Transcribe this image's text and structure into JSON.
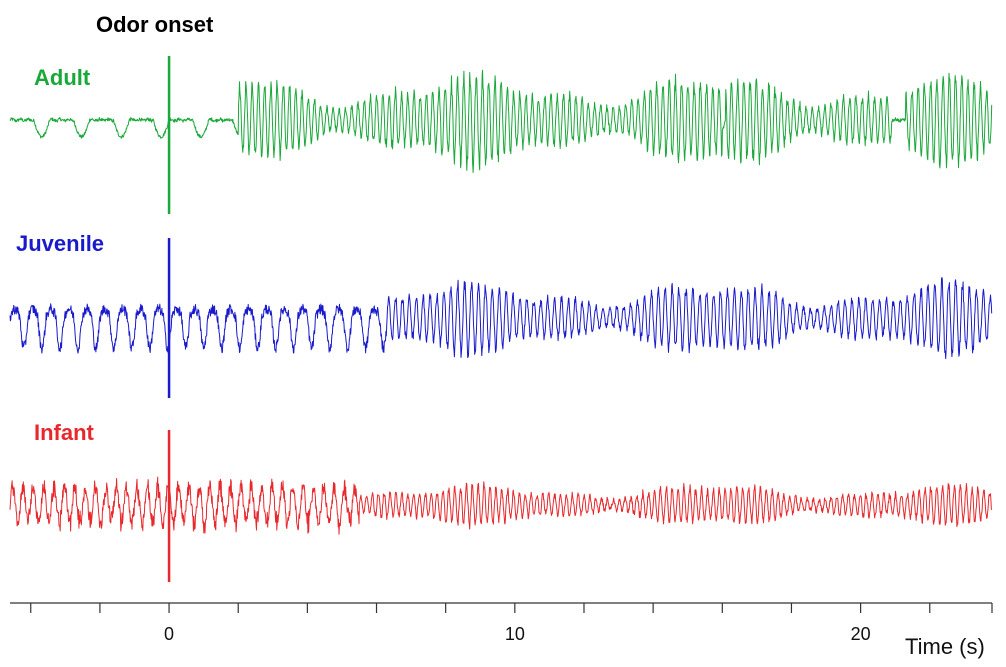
{
  "chart_data": {
    "type": "line",
    "title": "",
    "annotation": "Odor onset",
    "xlabel": "Time (s)",
    "xlim": [
      -4.6,
      23.8
    ],
    "x_ticks_major": [
      0,
      10,
      20
    ],
    "x_tick_labels": [
      "0",
      "10",
      "20"
    ],
    "x_ticks_minor": [
      -4,
      -2,
      2,
      4,
      6,
      8,
      12,
      14,
      16,
      18,
      22
    ],
    "onset_x": 0,
    "grid": false,
    "series": [
      {
        "name": "Adult",
        "color": "#1aa83a",
        "pre_onset": {
          "cycle_s": 1.15,
          "amplitude": 0.25
        },
        "post_onset": {
          "start_s": 2.0,
          "cycle_s": 0.18,
          "amplitude": 1.0
        },
        "pauses_s": [
          [
            16.0,
            16.1
          ],
          [
            20.9,
            21.3
          ]
        ]
      },
      {
        "name": "Juvenile",
        "color": "#1a1acd",
        "pre_onset": {
          "cycle_s": 0.52,
          "amplitude": 0.55
        },
        "post_onset": {
          "start_s": 6.3,
          "cycle_s": 0.2,
          "amplitude": 0.8
        }
      },
      {
        "name": "Infant",
        "color": "#e8282c",
        "pre_onset": {
          "cycle_s": 0.3,
          "amplitude": 0.45
        },
        "post_onset": {
          "start_s": 5.5,
          "cycle_s": 0.17,
          "amplitude": 0.45
        }
      }
    ]
  }
}
